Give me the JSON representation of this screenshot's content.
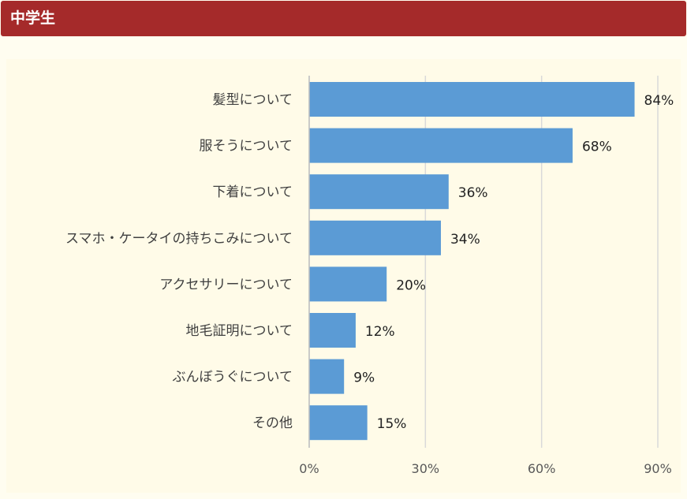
{
  "header": {
    "title": "中学生"
  },
  "chart_data": {
    "type": "bar",
    "orientation": "horizontal",
    "title": "",
    "categories": [
      "髪型について",
      "服そうについて",
      "下着について",
      "スマホ・ケータイの持ちこみについて",
      "アクセサリーについて",
      "地毛証明について",
      "ぶんぼうぐについて",
      "その他"
    ],
    "values": [
      84,
      68,
      36,
      34,
      20,
      12,
      9,
      15
    ],
    "value_labels": [
      "84%",
      "68%",
      "36%",
      "34%",
      "20%",
      "12%",
      "9%",
      "15%"
    ],
    "xlim": [
      0,
      90
    ],
    "xticks": [
      0,
      30,
      60,
      90
    ],
    "xtick_labels": [
      "0%",
      "30%",
      "60%",
      "90%"
    ],
    "grid": true,
    "bar_color": "#5b9bd5",
    "grid_color": "#d9d9d9"
  }
}
